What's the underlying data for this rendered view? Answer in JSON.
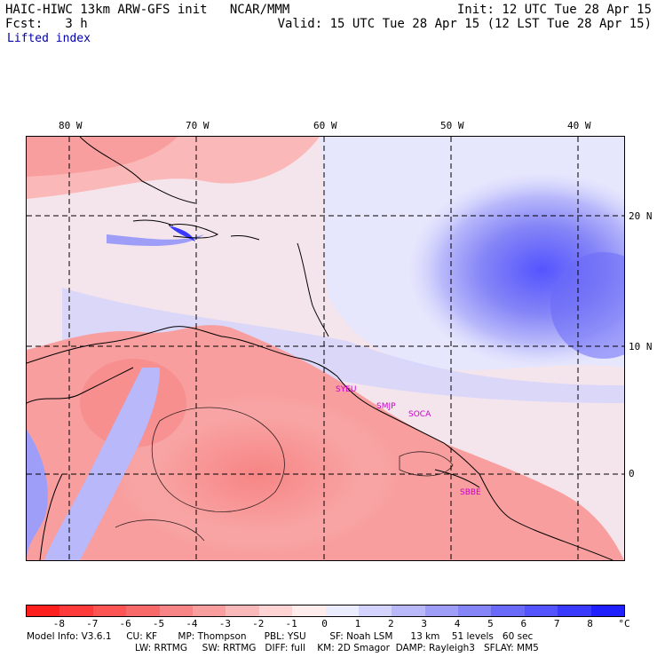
{
  "header": {
    "model_title": "HAIC-HIWC 13km ARW-GFS init   NCAR/MMM",
    "init": "Init: 12 UTC Tue 28 Apr 15",
    "fcst": "Fcst:   3 h",
    "valid": "Valid: 15 UTC Tue 28 Apr 15 (12 LST Tue 28 Apr 15)",
    "field": "Lifted index"
  },
  "map": {
    "lon_labels": [
      "80 W",
      "70 W",
      "60 W",
      "50 W",
      "40 W"
    ],
    "lat_labels": [
      "20 N",
      "10 N",
      "0"
    ],
    "stations": [
      "SYEU",
      "SMJP",
      "SOCA",
      "SBBE"
    ]
  },
  "colorbar": {
    "ticks": [
      "-8",
      "-7",
      "-6",
      "-5",
      "-4",
      "-3",
      "-2",
      "-1",
      "0",
      "1",
      "2",
      "3",
      "4",
      "5",
      "6",
      "7",
      "8"
    ],
    "unit": "°C",
    "colors": [
      "#ff1f1f",
      "#ff3a3a",
      "#ff5454",
      "#f86a6a",
      "#f78585",
      "#f89e9e",
      "#fbb8b8",
      "#fdd3d3",
      "#ffecec",
      "#ececff",
      "#d3d3fd",
      "#b8b8fb",
      "#9e9ef8",
      "#8585f7",
      "#6a6af8",
      "#5454ff",
      "#3a3aff",
      "#1f1fff"
    ]
  },
  "footer": {
    "line1": "Model Info: V3.6.1     CU: KF       MP: Thompson      PBL: YSU        SF: Noah LSM      13 km    51 levels   60 sec",
    "line2": "LW: RRTMG     SW: RRTMG   DIFF: full    KM: 2D Smagor  DAMP: Rayleigh3   SFLAY: MM5"
  }
}
